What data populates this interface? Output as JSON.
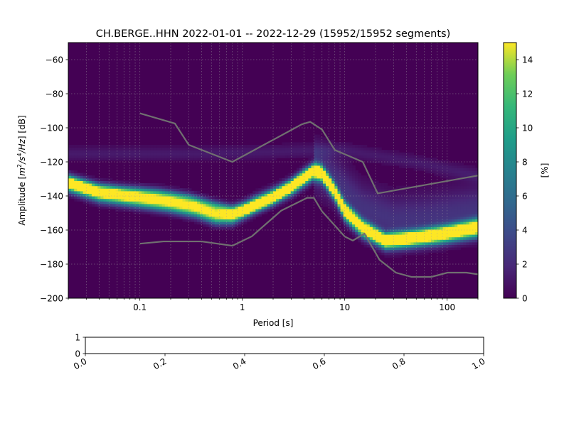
{
  "chart_data": [
    {
      "type": "heatmap",
      "title": "CH.BERGE..HHN   2022-01-01 -- 2022-12-29  (15952/15952 segments)",
      "xlabel": "Period [s]",
      "ylabel": "Amplitude [m²/s⁴/Hz] [dB]",
      "ylabel_parts": {
        "prefix": "Amplitude [",
        "m": "m",
        "sup2": "2",
        "mid": "/s",
        "sup4": "4",
        "hz": "/Hz",
        "suffix": "] [dB]"
      },
      "x_scale": "log",
      "xlim": [
        0.02,
        200
      ],
      "ylim": [
        -200,
        -50
      ],
      "x_ticks": [
        0.1,
        1,
        10,
        100
      ],
      "x_tick_labels": [
        "0.1",
        "1",
        "10",
        "100"
      ],
      "y_ticks": [
        -60,
        -80,
        -100,
        -120,
        -140,
        -160,
        -180,
        -200
      ],
      "y_tick_labels": [
        "−60",
        "−80",
        "−100",
        "−120",
        "−140",
        "−160",
        "−180",
        "−200"
      ],
      "grid": true,
      "colormap": "viridis",
      "colorbar": {
        "label": "[%]",
        "range": [
          0,
          15
        ],
        "ticks": [
          0,
          2,
          4,
          6,
          8,
          10,
          12,
          14
        ],
        "tick_labels": [
          "0",
          "2",
          "4",
          "6",
          "8",
          "10",
          "12",
          "14"
        ]
      },
      "density_ridges": [
        {
          "name": "",
          "peak": 14,
          "width_db": 3,
          "points": [
            [
              0.02,
              -133
            ],
            [
              0.04,
              -139
            ],
            [
              0.07,
              -141
            ],
            [
              0.12,
              -143
            ],
            [
              0.2,
              -145
            ],
            [
              0.35,
              -148
            ],
            [
              0.55,
              -152
            ],
            [
              0.8,
              -152
            ],
            [
              1.0,
              -149
            ],
            [
              1.3,
              -145
            ],
            [
              2,
              -140
            ],
            [
              3,
              -135
            ],
            [
              4,
              -130
            ],
            [
              5,
              -126
            ],
            [
              6,
              -127
            ],
            [
              8,
              -138
            ],
            [
              10,
              -150
            ],
            [
              15,
              -160
            ],
            [
              25,
              -167
            ],
            [
              40,
              -166
            ],
            [
              80,
              -164
            ],
            [
              200,
              -160
            ]
          ]
        },
        {
          "name": "",
          "peak": 10,
          "width_db": 2.5,
          "points": [
            [
              0.02,
              -131
            ],
            [
              0.04,
              -136
            ],
            [
              0.07,
              -137.5
            ],
            [
              0.15,
              -139
            ],
            [
              0.3,
              -142
            ],
            [
              0.5,
              -146
            ],
            [
              0.8,
              -149
            ],
            [
              1.2,
              -147
            ],
            [
              2,
              -141
            ],
            [
              3,
              -134
            ],
            [
              4,
              -128
            ],
            [
              5,
              -124
            ],
            [
              6,
              -126
            ],
            [
              8,
              -136
            ],
            [
              10,
              -146
            ],
            [
              15,
              -157
            ],
            [
              25,
              -165
            ],
            [
              50,
              -163
            ],
            [
              100,
              -160
            ],
            [
              200,
              -156
            ]
          ]
        },
        {
          "name": "",
          "peak": 2.5,
          "width_db": 10,
          "points": [
            [
              5,
              -122
            ],
            [
              7,
              -128
            ],
            [
              10,
              -137
            ],
            [
              15,
              -147
            ],
            [
              30,
              -154
            ],
            [
              60,
              -153
            ],
            [
              200,
              -148
            ]
          ]
        },
        {
          "name": "",
          "peak": 1.2,
          "width_db": 3,
          "points": [
            [
              0.02,
              -115
            ],
            [
              0.3,
              -115
            ],
            [
              1,
              -114.5
            ],
            [
              3,
              -113.5
            ],
            [
              6,
              -113
            ],
            [
              10,
              -113
            ],
            [
              20,
              -116
            ],
            [
              50,
              -120
            ],
            [
              100,
              -124
            ],
            [
              200,
              -128
            ]
          ]
        }
      ],
      "noise_models": [
        {
          "name": "",
          "points": [
            [
              0.1,
              -91.5
            ],
            [
              0.22,
              -97.5
            ],
            [
              0.3,
              -110
            ],
            [
              0.8,
              -120
            ],
            [
              3.8,
              -98
            ],
            [
              4.6,
              -96.5
            ],
            [
              6,
              -101
            ],
            [
              8,
              -113
            ],
            [
              15,
              -120
            ],
            [
              21,
              -138.5
            ],
            [
              200,
              -128
            ]
          ]
        },
        {
          "name": "",
          "points": [
            [
              0.1,
              -168
            ],
            [
              0.17,
              -166.7
            ],
            [
              0.4,
              -166.7
            ],
            [
              0.8,
              -169.2
            ],
            [
              1.24,
              -163.7
            ],
            [
              2.4,
              -148.6
            ],
            [
              4.3,
              -141.1
            ],
            [
              5,
              -141.1
            ],
            [
              6,
              -149
            ],
            [
              10,
              -163.8
            ],
            [
              12,
              -166.2
            ],
            [
              15.6,
              -162.1
            ],
            [
              21.9,
              -177.5
            ],
            [
              31.6,
              -185
            ],
            [
              45,
              -187.5
            ],
            [
              70,
              -187.5
            ],
            [
              101,
              -185
            ],
            [
              154,
              -185
            ],
            [
              200,
              -186
            ]
          ]
        }
      ]
    },
    {
      "type": "line",
      "xlim": [
        0,
        1
      ],
      "ylim": [
        0,
        1
      ],
      "x_ticks": [
        0.0,
        0.2,
        0.4,
        0.6,
        0.8,
        1.0
      ],
      "x_tick_labels": [
        "0.0",
        "0.2",
        "0.4",
        "0.6",
        "0.8",
        "1.0"
      ],
      "y_ticks": [
        0,
        1
      ],
      "y_tick_labels": [
        "0",
        "1"
      ],
      "series": []
    }
  ]
}
